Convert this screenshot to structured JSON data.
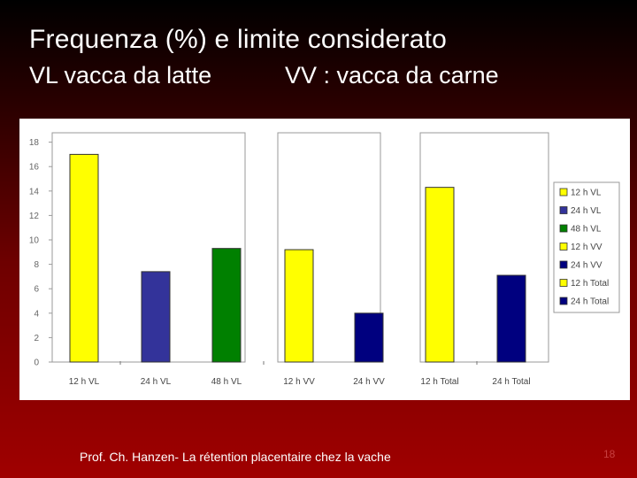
{
  "slide": {
    "title": "Frequenza (%) e limite considerato",
    "subtitle_left": "VL vacca da latte",
    "subtitle_right": "VV : vacca da carne",
    "footer": "Prof. Ch. Hanzen- La rétention placentaire chez la vache",
    "page_number": "18"
  },
  "chart_data": {
    "type": "bar",
    "title": "",
    "xlabel": "",
    "ylabel": "",
    "ylim": [
      0,
      18
    ],
    "yticks": [
      0,
      2,
      4,
      6,
      8,
      10,
      12,
      14,
      16,
      18
    ],
    "grid": false,
    "legend_position": "right",
    "groups": [
      {
        "categories": [
          "12 h VL",
          "24 h VL",
          "48 h VL"
        ]
      },
      {
        "categories": [
          "12 h VV",
          "24 h VV"
        ]
      },
      {
        "categories": [
          "12 h Total",
          "24 h Total"
        ]
      }
    ],
    "categories": [
      "12 h VL",
      "24 h VL",
      "48 h VL",
      "12 h VV",
      "24 h VV",
      "12 h Total",
      "24 h Total"
    ],
    "values": [
      17.0,
      7.4,
      9.3,
      9.2,
      4.0,
      14.3,
      7.1
    ],
    "colors": [
      "#ffff00",
      "#33339a",
      "#008000",
      "#ffff00",
      "#00007f",
      "#ffff00",
      "#00007f"
    ],
    "legend": [
      {
        "label": "12 h VL",
        "color": "#ffff00"
      },
      {
        "label": "24 h VL",
        "color": "#33339a"
      },
      {
        "label": "48 h VL",
        "color": "#008000"
      },
      {
        "label": "12 h VV",
        "color": "#ffff00"
      },
      {
        "label": "24 h VV",
        "color": "#00007f"
      },
      {
        "label": "12 h Total",
        "color": "#ffff00"
      },
      {
        "label": "24 h Total",
        "color": "#00007f"
      }
    ]
  }
}
